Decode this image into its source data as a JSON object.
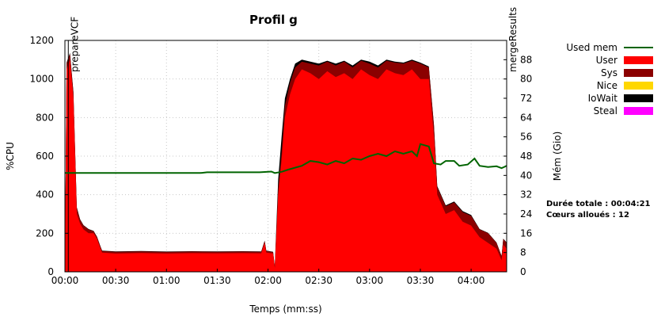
{
  "chart_data": {
    "type": "area",
    "title": "Profil g",
    "xlabel": "Temps (mm:ss)",
    "ylabel": "%CPU",
    "y2label": "Mém (Gio)",
    "xlim": [
      0,
      261
    ],
    "ylim": [
      0,
      1200
    ],
    "y2lim": [
      0,
      96
    ],
    "x_ticks": [
      {
        "v": 0,
        "label": "00:00"
      },
      {
        "v": 30,
        "label": "00:30"
      },
      {
        "v": 60,
        "label": "01:00"
      },
      {
        "v": 90,
        "label": "01:30"
      },
      {
        "v": 120,
        "label": "02:00"
      },
      {
        "v": 150,
        "label": "02:30"
      },
      {
        "v": 180,
        "label": "03:00"
      },
      {
        "v": 210,
        "label": "03:30"
      },
      {
        "v": 240,
        "label": "04:00"
      }
    ],
    "y_ticks": [
      0,
      200,
      400,
      600,
      800,
      1000,
      1200
    ],
    "y2_ticks": [
      0,
      8,
      16,
      24,
      32,
      40,
      48,
      56,
      64,
      72,
      80,
      88
    ],
    "grid": true,
    "legend_position": "right",
    "colors": {
      "user": "#ff0000",
      "sys": "#8b0000",
      "nice": "#ffd700",
      "iowait": "#000000",
      "steal": "#ff00ff",
      "mem": "#006400"
    },
    "legend": [
      {
        "key": "mem",
        "label": "Used mem",
        "kind": "line"
      },
      {
        "key": "user",
        "label": "User",
        "kind": "box"
      },
      {
        "key": "sys",
        "label": "Sys",
        "kind": "box"
      },
      {
        "key": "nice",
        "label": "Nice",
        "kind": "box"
      },
      {
        "key": "iowait",
        "label": "IoWait",
        "kind": "box"
      },
      {
        "key": "steal",
        "label": "Steal",
        "kind": "box"
      }
    ],
    "info": [
      "Durée totale : 00:04:21",
      "Cœurs alloués : 12"
    ],
    "markers": [
      {
        "x": 2,
        "label": "prepareVCF"
      },
      {
        "x": 261,
        "label": "mergeResults"
      }
    ],
    "series": [
      {
        "name": "User",
        "points": [
          [
            0,
            0
          ],
          [
            1,
            1050
          ],
          [
            3,
            1100
          ],
          [
            5,
            900
          ],
          [
            7,
            300
          ],
          [
            9,
            250
          ],
          [
            11,
            220
          ],
          [
            14,
            200
          ],
          [
            17,
            200
          ],
          [
            19,
            170
          ],
          [
            21,
            120
          ],
          [
            22,
            100
          ],
          [
            30,
            95
          ],
          [
            45,
            98
          ],
          [
            60,
            95
          ],
          [
            75,
            97
          ],
          [
            90,
            96
          ],
          [
            105,
            97
          ],
          [
            116,
            96
          ],
          [
            118,
            150
          ],
          [
            119,
            100
          ],
          [
            123,
            95
          ],
          [
            124,
            20
          ],
          [
            126,
            400
          ],
          [
            128,
            580
          ],
          [
            130,
            800
          ],
          [
            133,
            920
          ],
          [
            136,
            1000
          ],
          [
            140,
            1050
          ],
          [
            145,
            1030
          ],
          [
            150,
            1000
          ],
          [
            155,
            1040
          ],
          [
            160,
            1010
          ],
          [
            165,
            1030
          ],
          [
            170,
            1000
          ],
          [
            175,
            1050
          ],
          [
            180,
            1020
          ],
          [
            185,
            1000
          ],
          [
            190,
            1050
          ],
          [
            195,
            1030
          ],
          [
            200,
            1020
          ],
          [
            205,
            1050
          ],
          [
            210,
            1000
          ],
          [
            215,
            1000
          ],
          [
            218,
            700
          ],
          [
            220,
            400
          ],
          [
            225,
            300
          ],
          [
            230,
            320
          ],
          [
            235,
            260
          ],
          [
            240,
            240
          ],
          [
            245,
            180
          ],
          [
            250,
            150
          ],
          [
            255,
            120
          ],
          [
            258,
            60
          ],
          [
            259,
            140
          ],
          [
            261,
            120
          ]
        ]
      },
      {
        "name": "Sys",
        "points": [
          [
            0,
            0
          ],
          [
            1,
            1080
          ],
          [
            3,
            1130
          ],
          [
            5,
            930
          ],
          [
            7,
            330
          ],
          [
            9,
            270
          ],
          [
            11,
            240
          ],
          [
            14,
            220
          ],
          [
            17,
            210
          ],
          [
            19,
            180
          ],
          [
            21,
            130
          ],
          [
            22,
            108
          ],
          [
            30,
            104
          ],
          [
            45,
            106
          ],
          [
            60,
            103
          ],
          [
            75,
            105
          ],
          [
            90,
            104
          ],
          [
            105,
            105
          ],
          [
            116,
            104
          ],
          [
            118,
            160
          ],
          [
            119,
            108
          ],
          [
            123,
            102
          ],
          [
            124,
            25
          ],
          [
            126,
            430
          ],
          [
            128,
            620
          ],
          [
            130,
            860
          ],
          [
            133,
            980
          ],
          [
            136,
            1060
          ],
          [
            140,
            1090
          ],
          [
            145,
            1080
          ],
          [
            150,
            1070
          ],
          [
            155,
            1090
          ],
          [
            160,
            1070
          ],
          [
            165,
            1090
          ],
          [
            170,
            1060
          ],
          [
            175,
            1095
          ],
          [
            180,
            1080
          ],
          [
            185,
            1060
          ],
          [
            190,
            1095
          ],
          [
            195,
            1085
          ],
          [
            200,
            1080
          ],
          [
            205,
            1095
          ],
          [
            210,
            1080
          ],
          [
            215,
            1060
          ],
          [
            218,
            760
          ],
          [
            220,
            440
          ],
          [
            225,
            340
          ],
          [
            230,
            360
          ],
          [
            235,
            310
          ],
          [
            240,
            290
          ],
          [
            245,
            220
          ],
          [
            250,
            200
          ],
          [
            255,
            150
          ],
          [
            258,
            80
          ],
          [
            259,
            170
          ],
          [
            261,
            150
          ]
        ]
      },
      {
        "name": "IoWait",
        "points": [
          [
            0,
            0
          ],
          [
            1,
            1085
          ],
          [
            3,
            1135
          ],
          [
            5,
            935
          ],
          [
            7,
            335
          ],
          [
            9,
            272
          ],
          [
            11,
            242
          ],
          [
            14,
            222
          ],
          [
            17,
            212
          ],
          [
            19,
            182
          ],
          [
            21,
            132
          ],
          [
            22,
            110
          ],
          [
            30,
            106
          ],
          [
            45,
            108
          ],
          [
            60,
            105
          ],
          [
            75,
            107
          ],
          [
            90,
            106
          ],
          [
            105,
            107
          ],
          [
            116,
            106
          ],
          [
            118,
            162
          ],
          [
            119,
            110
          ],
          [
            123,
            104
          ],
          [
            124,
            30
          ],
          [
            126,
            480
          ],
          [
            128,
            700
          ],
          [
            130,
            900
          ],
          [
            133,
            1000
          ],
          [
            136,
            1080
          ],
          [
            140,
            1100
          ],
          [
            145,
            1090
          ],
          [
            150,
            1080
          ],
          [
            155,
            1095
          ],
          [
            160,
            1080
          ],
          [
            165,
            1095
          ],
          [
            170,
            1070
          ],
          [
            175,
            1100
          ],
          [
            180,
            1090
          ],
          [
            185,
            1070
          ],
          [
            190,
            1100
          ],
          [
            195,
            1090
          ],
          [
            200,
            1085
          ],
          [
            205,
            1100
          ],
          [
            210,
            1085
          ],
          [
            215,
            1065
          ],
          [
            218,
            765
          ],
          [
            220,
            445
          ],
          [
            225,
            345
          ],
          [
            230,
            365
          ],
          [
            235,
            315
          ],
          [
            240,
            295
          ],
          [
            245,
            222
          ],
          [
            250,
            202
          ],
          [
            255,
            152
          ],
          [
            258,
            82
          ],
          [
            259,
            172
          ],
          [
            261,
            152
          ]
        ]
      },
      {
        "name": "Used mem",
        "points": [
          [
            0,
            41
          ],
          [
            10,
            41
          ],
          [
            30,
            41
          ],
          [
            60,
            41
          ],
          [
            80,
            41
          ],
          [
            84,
            41.3
          ],
          [
            100,
            41.3
          ],
          [
            115,
            41.3
          ],
          [
            122,
            41.6
          ],
          [
            124,
            41
          ],
          [
            128,
            41.5
          ],
          [
            132,
            42.4
          ],
          [
            140,
            44
          ],
          [
            145,
            46
          ],
          [
            150,
            45.5
          ],
          [
            155,
            44.5
          ],
          [
            160,
            46
          ],
          [
            165,
            45
          ],
          [
            170,
            47
          ],
          [
            175,
            46.5
          ],
          [
            180,
            48
          ],
          [
            185,
            49
          ],
          [
            190,
            48
          ],
          [
            195,
            50
          ],
          [
            200,
            49
          ],
          [
            205,
            50
          ],
          [
            208,
            48
          ],
          [
            210,
            53
          ],
          [
            215,
            52
          ],
          [
            218,
            45
          ],
          [
            222,
            44.5
          ],
          [
            225,
            46
          ],
          [
            230,
            46
          ],
          [
            233,
            44
          ],
          [
            238,
            44.5
          ],
          [
            242,
            47
          ],
          [
            245,
            44
          ],
          [
            250,
            43.5
          ],
          [
            255,
            43.8
          ],
          [
            258,
            43
          ],
          [
            261,
            44
          ]
        ]
      }
    ]
  }
}
